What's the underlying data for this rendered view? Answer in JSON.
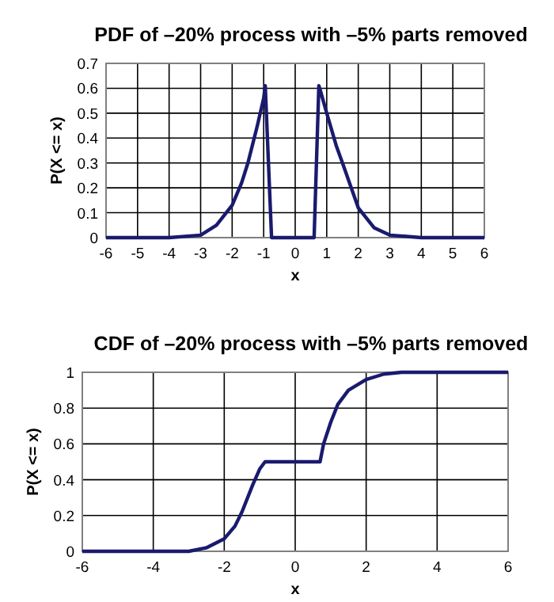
{
  "chart_data": [
    {
      "type": "line",
      "title": "PDF of –20% process with –5% parts removed",
      "xlabel": "x",
      "ylabel": "P(X <= x)",
      "xlim": [
        -6,
        6
      ],
      "ylim": [
        0,
        0.7
      ],
      "xticks": [
        -6,
        -5,
        -4,
        -3,
        -2,
        -1,
        0,
        1,
        2,
        3,
        4,
        5,
        6
      ],
      "yticks": [
        0,
        0.1,
        0.2,
        0.3,
        0.4,
        0.5,
        0.6,
        0.7
      ],
      "grid": true,
      "line_style": "solid",
      "series": [
        {
          "color": "#1a1a6e",
          "x": [
            -6,
            -4,
            -3,
            -2.5,
            -2,
            -1.7,
            -1.5,
            -1.2,
            -1,
            -0.95,
            -0.75,
            0,
            0.6,
            0.75,
            0.8,
            1,
            1.3,
            1.5,
            2,
            2.5,
            3,
            4,
            6
          ],
          "values": [
            0,
            0,
            0.01,
            0.05,
            0.13,
            0.22,
            0.3,
            0.45,
            0.56,
            0.61,
            0,
            0,
            0,
            0.61,
            0.59,
            0.5,
            0.37,
            0.3,
            0.12,
            0.04,
            0.01,
            0,
            0
          ]
        }
      ]
    },
    {
      "type": "line",
      "title": "CDF of –20% process with –5% parts removed",
      "xlabel": "x",
      "ylabel": "P(X <= x)",
      "xlim": [
        -6,
        6
      ],
      "ylim": [
        0,
        1
      ],
      "xticks": [
        -6,
        -4,
        -2,
        0,
        2,
        4,
        6
      ],
      "yticks": [
        0,
        0.2,
        0.4,
        0.6,
        0.8,
        1
      ],
      "grid": true,
      "line_style": "solid",
      "series": [
        {
          "color": "#1a1a6e",
          "x": [
            -6,
            -4,
            -3,
            -2.5,
            -2,
            -1.7,
            -1.5,
            -1.2,
            -1,
            -0.85,
            0,
            0.7,
            0.8,
            1,
            1.2,
            1.5,
            2,
            2.5,
            3,
            4,
            6
          ],
          "values": [
            0,
            0,
            0,
            0.02,
            0.07,
            0.14,
            0.22,
            0.37,
            0.46,
            0.5,
            0.5,
            0.5,
            0.6,
            0.72,
            0.82,
            0.9,
            0.96,
            0.99,
            1,
            1,
            1
          ]
        }
      ]
    }
  ]
}
